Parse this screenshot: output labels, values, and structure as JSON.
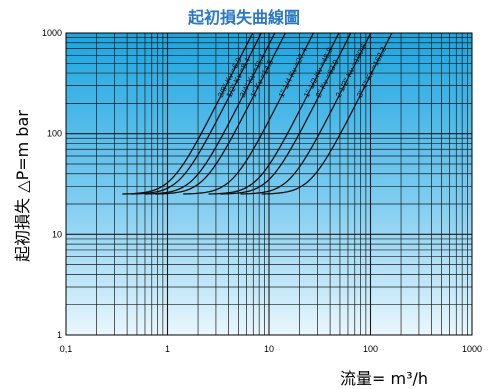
{
  "chart_data": {
    "type": "line",
    "title": "起初損失曲線圖",
    "xlabel": "流量= m³/h",
    "ylabel": "起初損失 △P=m bar",
    "x_scale": "log",
    "y_scale": "log",
    "xlim": [
      0.1,
      1000
    ],
    "ylim": [
      1,
      1000
    ],
    "x_ticks": [
      "0,1",
      "1",
      "10",
      "100",
      "1000"
    ],
    "y_ticks": [
      "1",
      "10",
      "100",
      "1000"
    ],
    "grid": true,
    "start_pressure": 25,
    "series": [
      {
        "name": "3/8\" Kv =6.9",
        "kv": 6.9
      },
      {
        "name": "1/2\" Kv =8.4",
        "kv": 8.4
      },
      {
        "name": "3/4\" Kv =11.4",
        "kv": 11.4
      },
      {
        "name": "1\" Kv =14.5",
        "kv": 14.5
      },
      {
        "name": "1\" 1/4 Kv =27.4",
        "kv": 27.4
      },
      {
        "name": "1\" 1/2 Kv =48.8",
        "kv": 48.8
      },
      {
        "name": "2\" Kv =63.9",
        "kv": 63.9
      },
      {
        "name": "2 1/2\" Kv =100.6",
        "kv": 100.6
      },
      {
        "name": "3\"-4\" Kv =162.3",
        "kv": 162.3
      }
    ]
  },
  "colors": {
    "title": "#2a78c4",
    "plot_top": "#1aa5e0",
    "plot_bottom": "#e8f6fd",
    "grid": "#1a1a1a",
    "curve": "#111111"
  }
}
